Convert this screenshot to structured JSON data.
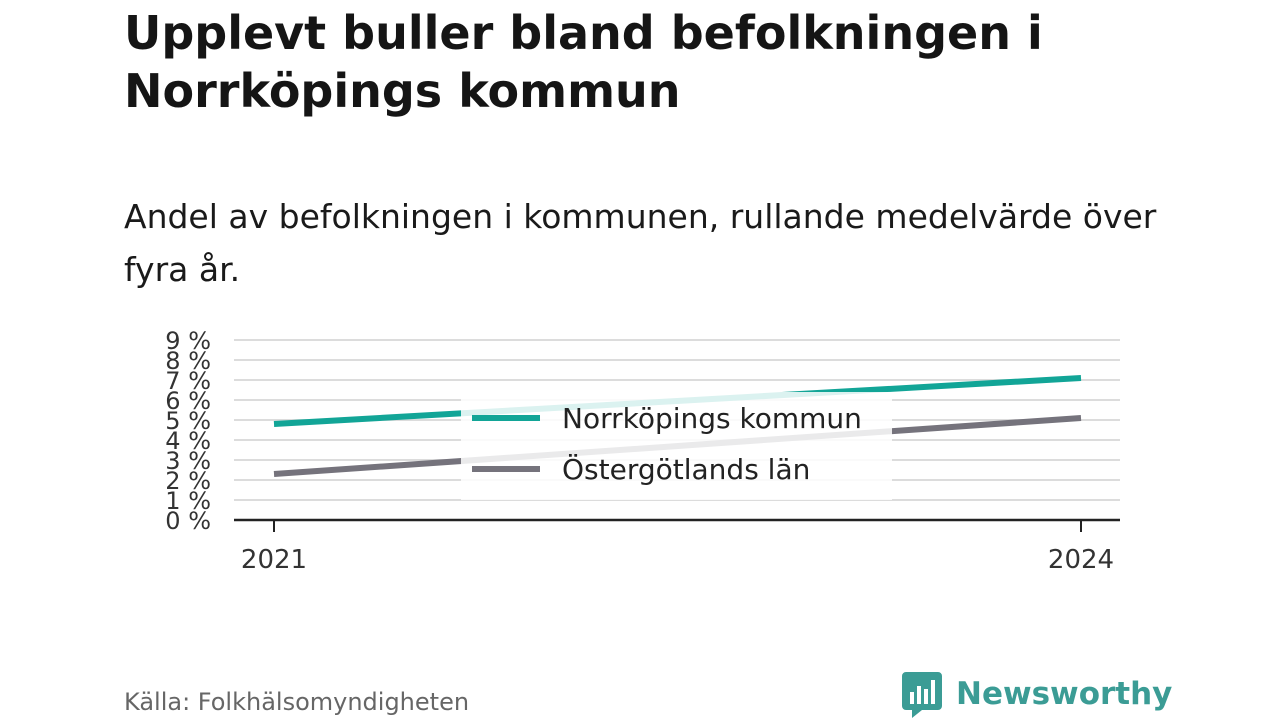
{
  "title": "Upplevt buller bland befolkningen i Norrköpings kommun",
  "subtitle": "Andel av befolkningen i kommunen, rullande medelvärde över fyra år.",
  "source": "Källa: Folkhälsomyndigheten",
  "brand": "Newsworthy",
  "colors": {
    "norrkoping": "#12a597",
    "ostergotland": "#75737c",
    "brand": "#3b9c95"
  },
  "chart_data": {
    "type": "line",
    "x": [
      2021,
      2024
    ],
    "x_tick_labels": [
      "2021",
      "2024"
    ],
    "y_tick_labels": [
      "0 %",
      "1 %",
      "2 %",
      "3 %",
      "4 %",
      "5 %",
      "6 %",
      "7 %",
      "8 %",
      "9 %"
    ],
    "ylim": [
      0,
      9
    ],
    "grid": true,
    "legend_position": "center",
    "series": [
      {
        "name": "Norrköpings kommun",
        "values": [
          4.8,
          7.1
        ],
        "color": "#12a597"
      },
      {
        "name": "Östergötlands län",
        "values": [
          2.3,
          5.1
        ],
        "color": "#75737c"
      }
    ]
  }
}
